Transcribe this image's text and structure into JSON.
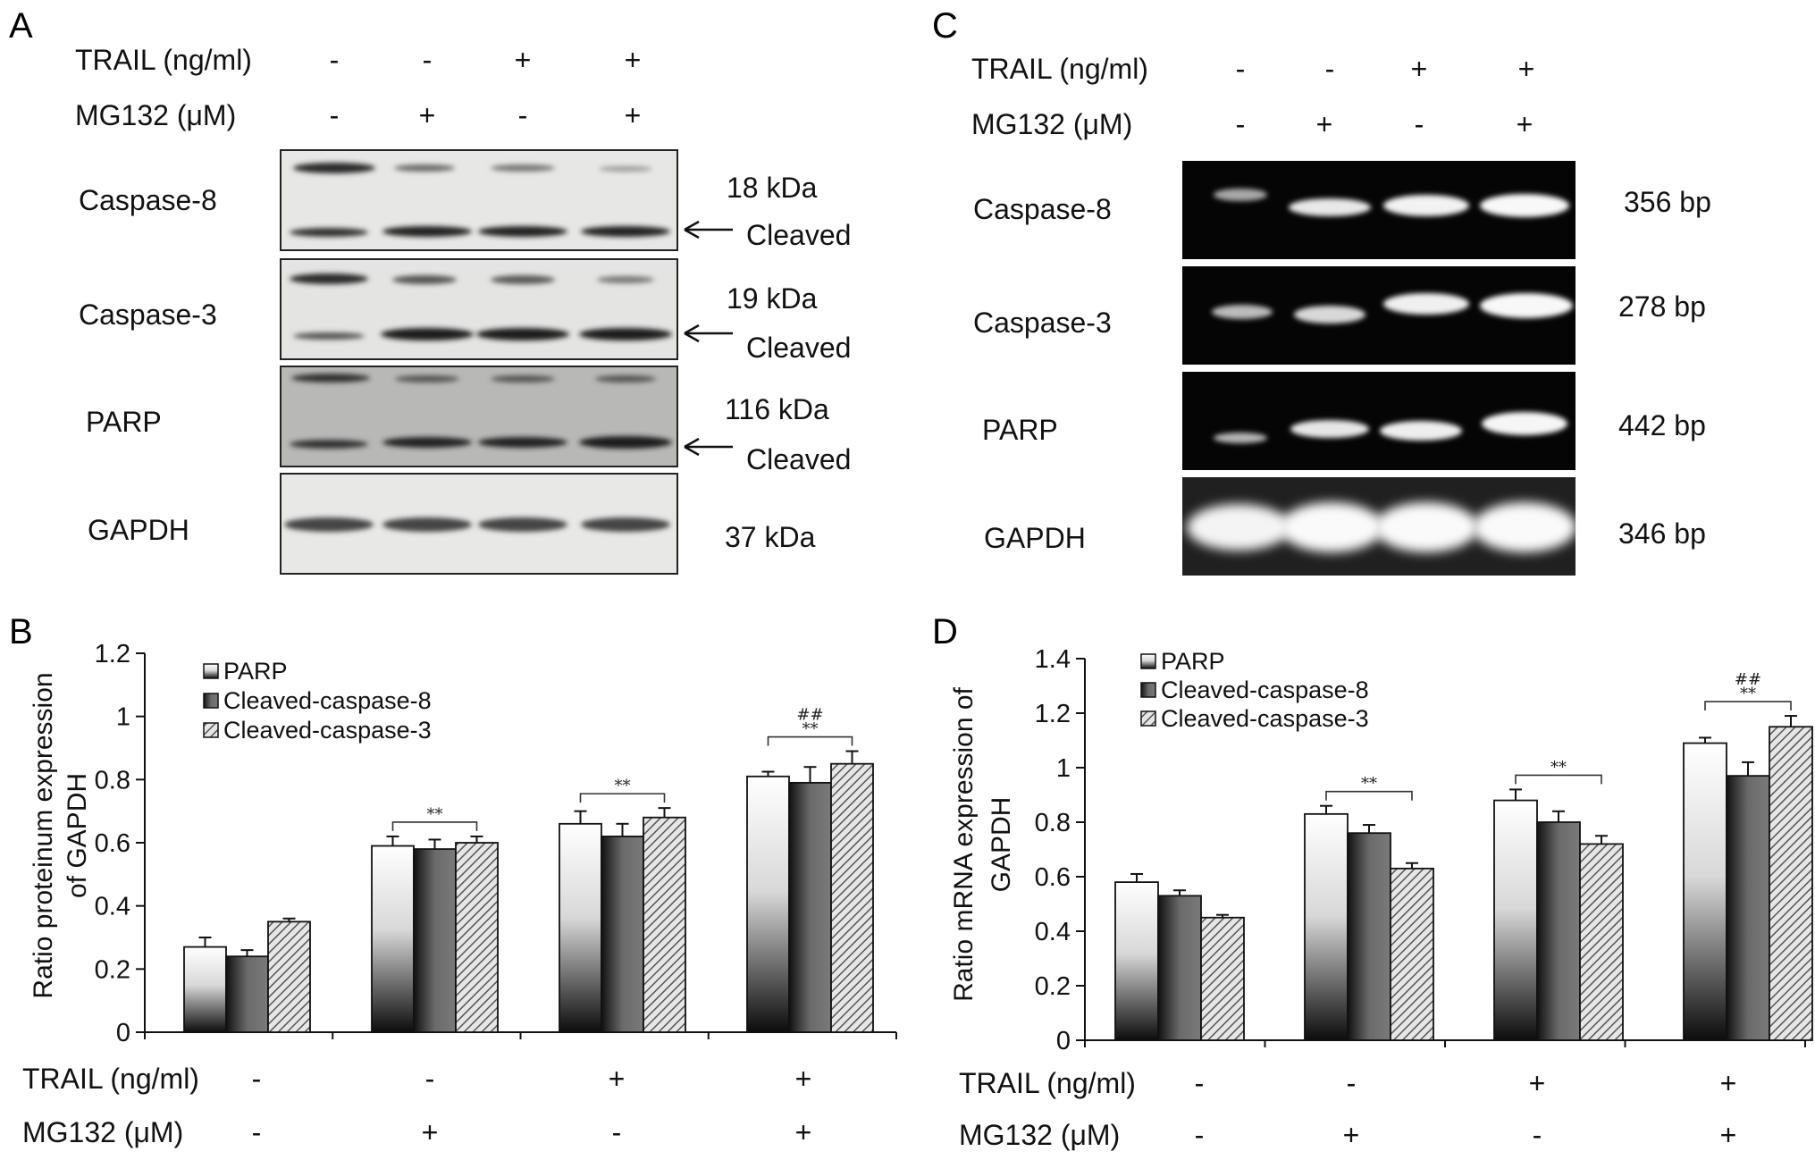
{
  "panels": {
    "a": "A",
    "b": "B",
    "c": "C",
    "d": "D"
  },
  "blot_conditions": {
    "trail_label": "TRAIL (ng/ml)",
    "mg132_label": "MG132 (μM)",
    "trail_values": [
      "-",
      "-",
      "+",
      "+"
    ],
    "mg132_values": [
      "-",
      "+",
      "-",
      "+"
    ]
  },
  "western": {
    "rows": [
      {
        "protein": "Caspase-8",
        "size": "18 kDa",
        "cleaved": "Cleaved"
      },
      {
        "protein": "Caspase-3",
        "size": "19 kDa",
        "cleaved": "Cleaved"
      },
      {
        "protein": "PARP",
        "size": "116 kDa",
        "cleaved": "Cleaved"
      },
      {
        "protein": "GAPDH",
        "size": "37 kDa",
        "cleaved": ""
      }
    ]
  },
  "pcr": {
    "rows": [
      {
        "gene": "Caspase-8",
        "size": "356 bp"
      },
      {
        "gene": "Caspase-3",
        "size": "278 bp"
      },
      {
        "gene": "PARP",
        "size": "442 bp"
      },
      {
        "gene": "GAPDH",
        "size": "346 bp"
      }
    ]
  },
  "chart_data": [
    {
      "panel": "B",
      "type": "bar",
      "ylabel": "Ratio proteinum expression of GAPDH",
      "ylabel_lines": [
        "Ratio proteinum expression",
        "of GAPDH"
      ],
      "ylim": [
        0,
        1.2
      ],
      "yticks": [
        0,
        0.2,
        0.4,
        0.6,
        0.8,
        1,
        1.2
      ],
      "ytick_labels": [
        "0",
        "0.2",
        "0.4",
        "0.6",
        "0.8",
        "1",
        "1.2"
      ],
      "categories": [
        "TRAIL -/MG132 -",
        "TRAIL -/MG132 +",
        "TRAIL +/MG132 -",
        "TRAIL +/MG132 +"
      ],
      "x_rows": [
        {
          "label": "TRAIL (ng/ml)",
          "values": [
            "-",
            "-",
            "+",
            "+"
          ]
        },
        {
          "label": "MG132 (μM)",
          "values": [
            "-",
            "+",
            "-",
            "+"
          ]
        }
      ],
      "series": [
        {
          "name": "PARP",
          "values": [
            0.27,
            0.59,
            0.66,
            0.81
          ],
          "errors": [
            0.03,
            0.03,
            0.04,
            0.015
          ]
        },
        {
          "name": "Cleaved-caspase-8",
          "values": [
            0.24,
            0.58,
            0.62,
            0.79
          ],
          "errors": [
            0.02,
            0.03,
            0.04,
            0.05
          ]
        },
        {
          "name": "Cleaved-caspase-3",
          "values": [
            0.35,
            0.6,
            0.68,
            0.85
          ],
          "errors": [
            0.01,
            0.02,
            0.03,
            0.04
          ]
        }
      ],
      "legend_position": "top-left",
      "annotations": [
        {
          "group": 1,
          "text": "**"
        },
        {
          "group": 2,
          "text": "**"
        },
        {
          "group": 3,
          "text": "**"
        },
        {
          "group": 3,
          "text": "##"
        }
      ]
    },
    {
      "panel": "D",
      "type": "bar",
      "ylabel": "Ratio mRNA expression of GAPDH",
      "ylabel_lines": [
        "Ratio mRNA expression of",
        "GAPDH"
      ],
      "ylim": [
        0,
        1.4
      ],
      "yticks": [
        0,
        0.2,
        0.4,
        0.6,
        0.8,
        1,
        1.2,
        1.4
      ],
      "ytick_labels": [
        "0",
        "0.2",
        "0.4",
        "0.6",
        "0.8",
        "1",
        "1.2",
        "1.4"
      ],
      "categories": [
        "TRAIL -/MG132 -",
        "TRAIL -/MG132 +",
        "TRAIL +/MG132 -",
        "TRAIL +/MG132 +"
      ],
      "x_rows": [
        {
          "label": "TRAIL (ng/ml)",
          "values": [
            "-",
            "-",
            "+",
            "+"
          ]
        },
        {
          "label": "MG132 (μM)",
          "values": [
            "-",
            "+",
            "-",
            "+"
          ]
        }
      ],
      "series": [
        {
          "name": "PARP",
          "values": [
            0.58,
            0.83,
            0.88,
            1.09
          ],
          "errors": [
            0.03,
            0.03,
            0.04,
            0.02
          ]
        },
        {
          "name": "Cleaved-caspase-8",
          "values": [
            0.53,
            0.76,
            0.8,
            0.97
          ],
          "errors": [
            0.02,
            0.03,
            0.04,
            0.05
          ]
        },
        {
          "name": "Cleaved-caspase-3",
          "values": [
            0.45,
            0.63,
            0.72,
            1.15
          ],
          "errors": [
            0.01,
            0.02,
            0.03,
            0.04
          ]
        }
      ],
      "legend_position": "top-left",
      "annotations": [
        {
          "group": 1,
          "text": "**"
        },
        {
          "group": 2,
          "text": "**"
        },
        {
          "group": 3,
          "text": "**"
        },
        {
          "group": 3,
          "text": "##"
        }
      ]
    }
  ]
}
